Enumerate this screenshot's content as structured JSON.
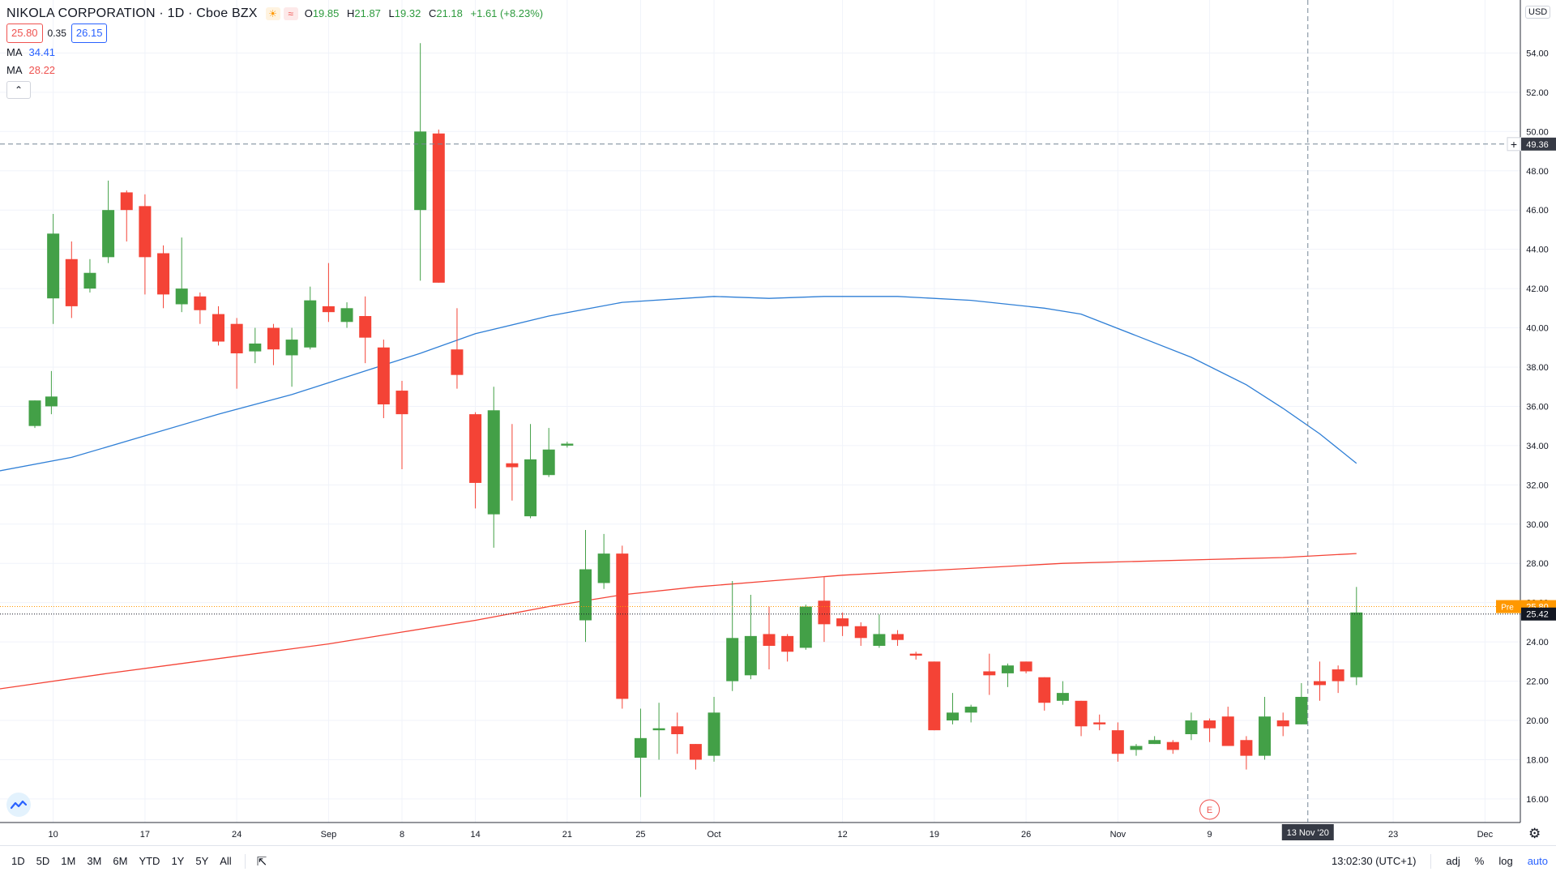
{
  "legend": {
    "symbol": "NIKOLA CORPORATION · 1D · Cboe BZX",
    "ohlc": [
      {
        "k": "O",
        "v": "19.85"
      },
      {
        "k": "H",
        "v": "21.87"
      },
      {
        "k": "L",
        "v": "19.32"
      },
      {
        "k": "C",
        "v": "21.18"
      },
      {
        "k": "",
        "v": "+1.61 (+8.23%)"
      }
    ],
    "bid": "25.80",
    "spread": "0.35",
    "ask": "26.15",
    "ma1_label": "MA",
    "ma1_value": "34.41",
    "ma2_label": "MA",
    "ma2_value": "28.22",
    "collapse_icon": "chevron-up-icon"
  },
  "currency": "USD",
  "crosshair": {
    "price_label": "49.36",
    "date_label": "13 Nov '20"
  },
  "price_tags": {
    "pre_label": "Pre",
    "pre_value": "25.80",
    "last_value": "25.42"
  },
  "earnings_marker": "E",
  "toolbar": {
    "ranges": [
      "1D",
      "5D",
      "1M",
      "3M",
      "6M",
      "YTD",
      "1Y",
      "5Y",
      "All"
    ],
    "time": "13:02:30 (UTC+1)",
    "adj": "adj",
    "percent": "%",
    "log": "log",
    "auto": "auto"
  },
  "colors": {
    "up": "#43a047",
    "down": "#f44336",
    "ma_blue": "#2f7fd6",
    "ma_red": "#f44336",
    "grid": "#f0f3fa"
  },
  "chart_data": {
    "type": "candlestick",
    "title": "NIKOLA CORPORATION · 1D · Cboe BZX",
    "ylim": [
      14.8,
      56.7
    ],
    "y_ticks": [
      16,
      18,
      20,
      22,
      24,
      26,
      28,
      30,
      32,
      34,
      36,
      38,
      40,
      42,
      44,
      46,
      48,
      50,
      52,
      54
    ],
    "x_ticks": [
      {
        "label": "10",
        "i": 1
      },
      {
        "label": "17",
        "i": 6
      },
      {
        "label": "24",
        "i": 11
      },
      {
        "label": "Sep",
        "i": 16
      },
      {
        "label": "8",
        "i": 20
      },
      {
        "label": "14",
        "i": 24
      },
      {
        "label": "21",
        "i": 29
      },
      {
        "label": "25",
        "i": 33
      },
      {
        "label": "Oct",
        "i": 37
      },
      {
        "label": "12",
        "i": 44
      },
      {
        "label": "19",
        "i": 49
      },
      {
        "label": "26",
        "i": 54
      },
      {
        "label": "Nov",
        "i": 59
      },
      {
        "label": "9",
        "i": 64
      },
      {
        "label": "23",
        "i": 74
      },
      {
        "label": "Dec",
        "i": 79
      }
    ],
    "candles": [
      {
        "i": 0,
        "o": 35.0,
        "h": 36.3,
        "l": 34.9,
        "c": 36.3
      },
      {
        "i": 0.9,
        "o": 36.0,
        "h": 37.8,
        "l": 35.6,
        "c": 36.5
      },
      {
        "i": 1,
        "o": 41.5,
        "h": 45.8,
        "l": 40.2,
        "c": 44.8
      },
      {
        "i": 2,
        "o": 43.5,
        "h": 44.4,
        "l": 40.5,
        "c": 41.1
      },
      {
        "i": 3,
        "o": 42.0,
        "h": 43.5,
        "l": 41.8,
        "c": 42.8
      },
      {
        "i": 4,
        "o": 43.6,
        "h": 47.5,
        "l": 43.3,
        "c": 46.0
      },
      {
        "i": 5,
        "o": 46.9,
        "h": 47.0,
        "l": 44.4,
        "c": 46.0
      },
      {
        "i": 6,
        "o": 46.2,
        "h": 46.8,
        "l": 41.7,
        "c": 43.6
      },
      {
        "i": 7,
        "o": 43.8,
        "h": 44.2,
        "l": 41.0,
        "c": 41.7
      },
      {
        "i": 8,
        "o": 41.2,
        "h": 44.6,
        "l": 40.8,
        "c": 42.0
      },
      {
        "i": 9,
        "o": 41.6,
        "h": 41.8,
        "l": 40.2,
        "c": 40.9
      },
      {
        "i": 10,
        "o": 40.7,
        "h": 41.1,
        "l": 39.1,
        "c": 39.3
      },
      {
        "i": 11,
        "o": 40.2,
        "h": 40.5,
        "l": 36.9,
        "c": 38.7
      },
      {
        "i": 12,
        "o": 38.8,
        "h": 40.0,
        "l": 38.2,
        "c": 39.2
      },
      {
        "i": 13,
        "o": 40.0,
        "h": 40.2,
        "l": 38.1,
        "c": 38.9
      },
      {
        "i": 14,
        "o": 38.6,
        "h": 40.0,
        "l": 37.0,
        "c": 39.4
      },
      {
        "i": 15,
        "o": 39.0,
        "h": 42.1,
        "l": 38.9,
        "c": 41.4
      },
      {
        "i": 16,
        "o": 41.1,
        "h": 43.3,
        "l": 40.3,
        "c": 40.8
      },
      {
        "i": 17,
        "o": 40.3,
        "h": 41.3,
        "l": 40.0,
        "c": 41.0
      },
      {
        "i": 18,
        "o": 40.6,
        "h": 41.6,
        "l": 38.2,
        "c": 39.5
      },
      {
        "i": 19,
        "o": 39.0,
        "h": 39.4,
        "l": 35.4,
        "c": 36.1
      },
      {
        "i": 20,
        "o": 36.8,
        "h": 37.3,
        "l": 32.8,
        "c": 35.6
      },
      {
        "i": 21,
        "o": 46.0,
        "h": 54.5,
        "l": 42.4,
        "c": 50.0
      },
      {
        "i": 22,
        "o": 49.9,
        "h": 50.1,
        "l": 42.3,
        "c": 42.3
      },
      {
        "i": 23,
        "o": 38.9,
        "h": 41.0,
        "l": 36.9,
        "c": 37.6
      },
      {
        "i": 24,
        "o": 35.6,
        "h": 35.7,
        "l": 30.8,
        "c": 32.1
      },
      {
        "i": 25,
        "o": 30.5,
        "h": 37.0,
        "l": 28.8,
        "c": 35.8
      },
      {
        "i": 26,
        "o": 33.1,
        "h": 35.1,
        "l": 31.2,
        "c": 32.9
      },
      {
        "i": 27,
        "o": 30.4,
        "h": 35.1,
        "l": 30.3,
        "c": 33.3
      },
      {
        "i": 28,
        "o": 32.5,
        "h": 34.9,
        "l": 32.4,
        "c": 33.8
      },
      {
        "i": 29,
        "o": 34.0,
        "h": 34.2,
        "l": 33.9,
        "c": 34.1
      },
      {
        "i": 30,
        "o": 25.1,
        "h": 29.7,
        "l": 24.0,
        "c": 27.7
      },
      {
        "i": 31,
        "o": 27.0,
        "h": 29.5,
        "l": 26.7,
        "c": 28.5
      },
      {
        "i": 32,
        "o": 28.5,
        "h": 28.9,
        "l": 20.6,
        "c": 21.1
      },
      {
        "i": 33,
        "o": 18.1,
        "h": 20.6,
        "l": 16.1,
        "c": 19.1
      },
      {
        "i": 34,
        "o": 19.5,
        "h": 20.9,
        "l": 18.0,
        "c": 19.6
      },
      {
        "i": 35,
        "o": 19.7,
        "h": 20.4,
        "l": 18.3,
        "c": 19.3
      },
      {
        "i": 36,
        "o": 18.8,
        "h": 18.8,
        "l": 17.5,
        "c": 18.0
      },
      {
        "i": 37,
        "o": 18.2,
        "h": 21.2,
        "l": 17.9,
        "c": 20.4
      },
      {
        "i": 38,
        "o": 22.0,
        "h": 27.1,
        "l": 21.5,
        "c": 24.2
      },
      {
        "i": 39,
        "o": 22.3,
        "h": 26.4,
        "l": 22.1,
        "c": 24.3
      },
      {
        "i": 40,
        "o": 24.4,
        "h": 25.8,
        "l": 22.6,
        "c": 23.8
      },
      {
        "i": 41,
        "o": 24.3,
        "h": 24.4,
        "l": 23.0,
        "c": 23.5
      },
      {
        "i": 42,
        "o": 23.7,
        "h": 25.9,
        "l": 23.6,
        "c": 25.8
      },
      {
        "i": 43,
        "o": 26.1,
        "h": 27.3,
        "l": 24.0,
        "c": 24.9
      },
      {
        "i": 44,
        "o": 25.2,
        "h": 25.5,
        "l": 24.3,
        "c": 24.8
      },
      {
        "i": 45,
        "o": 24.8,
        "h": 25.0,
        "l": 23.8,
        "c": 24.2
      },
      {
        "i": 46,
        "o": 23.8,
        "h": 25.4,
        "l": 23.7,
        "c": 24.4
      },
      {
        "i": 47,
        "o": 24.4,
        "h": 24.6,
        "l": 23.8,
        "c": 24.1
      },
      {
        "i": 48,
        "o": 23.4,
        "h": 23.5,
        "l": 23.1,
        "c": 23.3
      },
      {
        "i": 49,
        "o": 23.0,
        "h": 23.0,
        "l": 19.5,
        "c": 19.5
      },
      {
        "i": 50,
        "o": 20.0,
        "h": 21.4,
        "l": 19.8,
        "c": 20.4
      },
      {
        "i": 51,
        "o": 20.4,
        "h": 20.8,
        "l": 19.9,
        "c": 20.7
      },
      {
        "i": 52,
        "o": 22.5,
        "h": 23.4,
        "l": 21.3,
        "c": 22.3
      },
      {
        "i": 53,
        "o": 22.4,
        "h": 22.9,
        "l": 21.7,
        "c": 22.8
      },
      {
        "i": 54,
        "o": 23.0,
        "h": 23.0,
        "l": 22.4,
        "c": 22.5
      },
      {
        "i": 55,
        "o": 22.2,
        "h": 22.2,
        "l": 20.5,
        "c": 20.9
      },
      {
        "i": 56,
        "o": 21.0,
        "h": 22.0,
        "l": 20.8,
        "c": 21.4
      },
      {
        "i": 57,
        "o": 21.0,
        "h": 21.0,
        "l": 19.2,
        "c": 19.7
      },
      {
        "i": 58,
        "o": 19.9,
        "h": 20.3,
        "l": 19.5,
        "c": 19.8
      },
      {
        "i": 59,
        "o": 19.5,
        "h": 19.9,
        "l": 17.9,
        "c": 18.3
      },
      {
        "i": 60,
        "o": 18.5,
        "h": 18.8,
        "l": 18.2,
        "c": 18.7
      },
      {
        "i": 61,
        "o": 18.8,
        "h": 19.2,
        "l": 18.8,
        "c": 19.0
      },
      {
        "i": 62,
        "o": 18.9,
        "h": 19.0,
        "l": 18.3,
        "c": 18.5
      },
      {
        "i": 63,
        "o": 19.3,
        "h": 20.4,
        "l": 19.0,
        "c": 20.0
      },
      {
        "i": 64,
        "o": 20.0,
        "h": 20.1,
        "l": 18.9,
        "c": 19.6
      },
      {
        "i": 65,
        "o": 20.2,
        "h": 20.7,
        "l": 18.7,
        "c": 18.7
      },
      {
        "i": 66,
        "o": 19.0,
        "h": 19.2,
        "l": 17.5,
        "c": 18.2
      },
      {
        "i": 67,
        "o": 18.2,
        "h": 21.2,
        "l": 18.0,
        "c": 20.2
      },
      {
        "i": 68,
        "o": 20.0,
        "h": 20.4,
        "l": 19.2,
        "c": 19.7
      },
      {
        "i": 69,
        "o": 19.8,
        "h": 21.9,
        "l": 19.8,
        "c": 21.2
      },
      {
        "i": 70,
        "o": 22.0,
        "h": 23.0,
        "l": 21.0,
        "c": 21.8
      },
      {
        "i": 71,
        "o": 22.6,
        "h": 22.8,
        "l": 21.4,
        "c": 22.0
      },
      {
        "i": 72,
        "o": 22.2,
        "h": 26.8,
        "l": 21.8,
        "c": 25.5
      }
    ],
    "series": [
      {
        "name": "MA",
        "color": "#2f7fd6",
        "points": [
          [
            -2,
            32.7
          ],
          [
            2,
            33.4
          ],
          [
            6,
            34.5
          ],
          [
            10,
            35.6
          ],
          [
            14,
            36.6
          ],
          [
            18,
            37.8
          ],
          [
            21,
            38.7
          ],
          [
            24,
            39.7
          ],
          [
            28,
            40.6
          ],
          [
            32,
            41.3
          ],
          [
            37,
            41.6
          ],
          [
            40,
            41.5
          ],
          [
            43,
            41.6
          ],
          [
            47,
            41.6
          ],
          [
            51,
            41.4
          ],
          [
            55,
            41.0
          ],
          [
            57,
            40.7
          ],
          [
            60,
            39.6
          ],
          [
            63,
            38.5
          ],
          [
            66,
            37.1
          ],
          [
            68,
            35.9
          ],
          [
            70,
            34.6
          ],
          [
            72,
            33.1
          ]
        ]
      },
      {
        "name": "MA",
        "color": "#f44336",
        "points": [
          [
            -2,
            21.6
          ],
          [
            4,
            22.4
          ],
          [
            8,
            22.9
          ],
          [
            12,
            23.4
          ],
          [
            16,
            23.9
          ],
          [
            20,
            24.5
          ],
          [
            24,
            25.1
          ],
          [
            28,
            25.8
          ],
          [
            32,
            26.4
          ],
          [
            36,
            26.8
          ],
          [
            40,
            27.1
          ],
          [
            44,
            27.4
          ],
          [
            48,
            27.6
          ],
          [
            52,
            27.8
          ],
          [
            56,
            28.0
          ],
          [
            60,
            28.1
          ],
          [
            64,
            28.2
          ],
          [
            68,
            28.3
          ],
          [
            72,
            28.5
          ]
        ]
      }
    ]
  }
}
